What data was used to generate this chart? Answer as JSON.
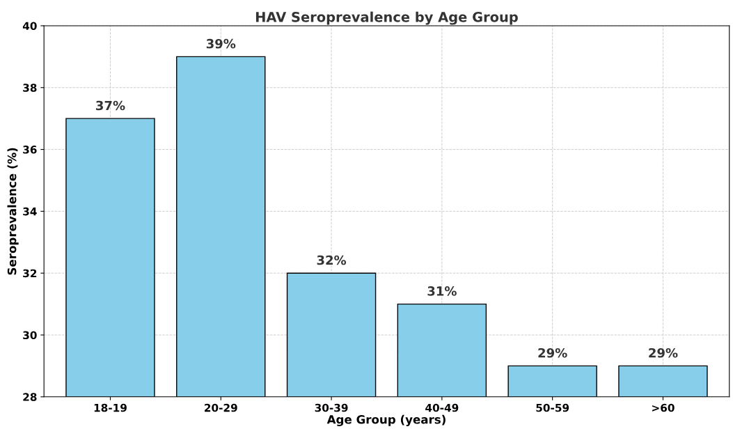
{
  "chart_data": {
    "type": "bar",
    "title": "HAV Seroprevalence by Age Group",
    "xlabel": "Age Group (years)",
    "ylabel": "Seroprevalence (%)",
    "categories": [
      "18-19",
      "20-29",
      "30-39",
      "40-49",
      "50-59",
      ">60"
    ],
    "values": [
      37,
      39,
      32,
      31,
      29,
      29
    ],
    "value_labels": [
      "37%",
      "39%",
      "32%",
      "31%",
      "29%",
      "29%"
    ],
    "color": "#87ceeb",
    "ylim": [
      28,
      40
    ],
    "yticks": [
      28,
      30,
      32,
      34,
      36,
      38,
      40
    ],
    "grid": true
  }
}
